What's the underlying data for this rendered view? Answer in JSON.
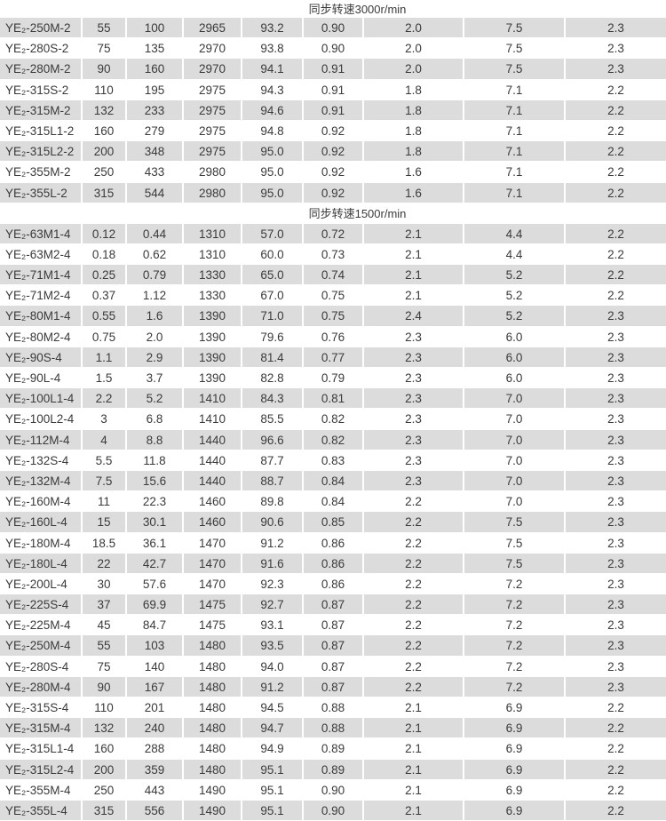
{
  "sections": [
    {
      "title": "同步转速3000r/min",
      "rows": [
        [
          "YE₂-250M-2",
          "55",
          "100",
          "2965",
          "93.2",
          "0.90",
          "2.0",
          "7.5",
          "2.3"
        ],
        [
          "YE₂-280S-2",
          "75",
          "135",
          "2970",
          "93.8",
          "0.90",
          "2.0",
          "7.5",
          "2.3"
        ],
        [
          "YE₂-280M-2",
          "90",
          "160",
          "2970",
          "94.1",
          "0.91",
          "2.0",
          "7.5",
          "2.3"
        ],
        [
          "YE₂-315S-2",
          "110",
          "195",
          "2975",
          "94.3",
          "0.91",
          "1.8",
          "7.1",
          "2.2"
        ],
        [
          "YE₂-315M-2",
          "132",
          "233",
          "2975",
          "94.6",
          "0.91",
          "1.8",
          "7.1",
          "2.2"
        ],
        [
          "YE₂-315L1-2",
          "160",
          "279",
          "2975",
          "94.8",
          "0.92",
          "1.8",
          "7.1",
          "2.2"
        ],
        [
          "YE₂-315L2-2",
          "200",
          "348",
          "2975",
          "95.0",
          "0.92",
          "1.8",
          "7.1",
          "2.2"
        ],
        [
          "YE₂-355M-2",
          "250",
          "433",
          "2980",
          "95.0",
          "0.92",
          "1.6",
          "7.1",
          "2.2"
        ],
        [
          "YE₂-355L-2",
          "315",
          "544",
          "2980",
          "95.0",
          "0.92",
          "1.6",
          "7.1",
          "2.2"
        ]
      ]
    },
    {
      "title": "同步转速1500r/min",
      "rows": [
        [
          "YE₂-63M1-4",
          "0.12",
          "0.44",
          "1310",
          "57.0",
          "0.72",
          "2.1",
          "4.4",
          "2.2"
        ],
        [
          "YE₂-63M2-4",
          "0.18",
          "0.62",
          "1310",
          "60.0",
          "0.73",
          "2.1",
          "4.4",
          "2.2"
        ],
        [
          "YE₂-71M1-4",
          "0.25",
          "0.79",
          "1330",
          "65.0",
          "0.74",
          "2.1",
          "5.2",
          "2.2"
        ],
        [
          "YE₂-71M2-4",
          "0.37",
          "1.12",
          "1330",
          "67.0",
          "0.75",
          "2.1",
          "5.2",
          "2.2"
        ],
        [
          "YE₂-80M1-4",
          "0.55",
          "1.6",
          "1390",
          "71.0",
          "0.75",
          "2.4",
          "5.2",
          "2.3"
        ],
        [
          "YE₂-80M2-4",
          "0.75",
          "2.0",
          "1390",
          "79.6",
          "0.76",
          "2.3",
          "6.0",
          "2.3"
        ],
        [
          "YE₂-90S-4",
          "1.1",
          "2.9",
          "1390",
          "81.4",
          "0.77",
          "2.3",
          "6.0",
          "2.3"
        ],
        [
          "YE₂-90L-4",
          "1.5",
          "3.7",
          "1390",
          "82.8",
          "0.79",
          "2.3",
          "6.0",
          "2.3"
        ],
        [
          "YE₂-100L1-4",
          "2.2",
          "5.2",
          "1410",
          "84.3",
          "0.81",
          "2.3",
          "7.0",
          "2.3"
        ],
        [
          "YE₂-100L2-4",
          "3",
          "6.8",
          "1410",
          "85.5",
          "0.82",
          "2.3",
          "7.0",
          "2.3"
        ],
        [
          "YE₂-112M-4",
          "4",
          "8.8",
          "1440",
          "96.6",
          "0.82",
          "2.3",
          "7.0",
          "2.3"
        ],
        [
          "YE₂-132S-4",
          "5.5",
          "11.8",
          "1440",
          "87.7",
          "0.83",
          "2.3",
          "7.0",
          "2.3"
        ],
        [
          "YE₂-132M-4",
          "7.5",
          "15.6",
          "1440",
          "88.7",
          "0.84",
          "2.3",
          "7.0",
          "2.3"
        ],
        [
          "YE₂-160M-4",
          "11",
          "22.3",
          "1460",
          "89.8",
          "0.84",
          "2.2",
          "7.0",
          "2.3"
        ],
        [
          "YE₂-160L-4",
          "15",
          "30.1",
          "1460",
          "90.6",
          "0.85",
          "2.2",
          "7.5",
          "2.3"
        ],
        [
          "YE₂-180M-4",
          "18.5",
          "36.1",
          "1470",
          "91.2",
          "0.86",
          "2.2",
          "7.5",
          "2.3"
        ],
        [
          "YE₂-180L-4",
          "22",
          "42.7",
          "1470",
          "91.6",
          "0.86",
          "2.2",
          "7.5",
          "2.3"
        ],
        [
          "YE₂-200L-4",
          "30",
          "57.6",
          "1470",
          "92.3",
          "0.86",
          "2.2",
          "7.2",
          "2.3"
        ],
        [
          "YE₂-225S-4",
          "37",
          "69.9",
          "1475",
          "92.7",
          "0.87",
          "2.2",
          "7.2",
          "2.3"
        ],
        [
          "YE₂-225M-4",
          "45",
          "84.7",
          "1475",
          "93.1",
          "0.87",
          "2.2",
          "7.2",
          "2.3"
        ],
        [
          "YE₂-250M-4",
          "55",
          "103",
          "1480",
          "93.5",
          "0.87",
          "2.2",
          "7.2",
          "2.3"
        ],
        [
          "YE₂-280S-4",
          "75",
          "140",
          "1480",
          "94.0",
          "0.87",
          "2.2",
          "7.2",
          "2.3"
        ],
        [
          "YE₂-280M-4",
          "90",
          "167",
          "1480",
          "91.2",
          "0.87",
          "2.2",
          "7.2",
          "2.3"
        ],
        [
          "YE₂-315S-4",
          "110",
          "201",
          "1480",
          "94.5",
          "0.88",
          "2.1",
          "6.9",
          "2.2"
        ],
        [
          "YE₂-315M-4",
          "132",
          "240",
          "1480",
          "94.7",
          "0.88",
          "2.1",
          "6.9",
          "2.2"
        ],
        [
          "YE₂-315L1-4",
          "160",
          "288",
          "1480",
          "94.9",
          "0.89",
          "2.1",
          "6.9",
          "2.2"
        ],
        [
          "YE₂-315L2-4",
          "200",
          "359",
          "1480",
          "95.1",
          "0.89",
          "2.1",
          "6.9",
          "2.2"
        ],
        [
          "YE₂-355M-4",
          "250",
          "443",
          "1490",
          "95.1",
          "0.90",
          "2.1",
          "6.9",
          "2.2"
        ],
        [
          "YE₂-355L-4",
          "315",
          "556",
          "1490",
          "95.1",
          "0.90",
          "2.1",
          "6.9",
          "2.2"
        ]
      ]
    }
  ]
}
